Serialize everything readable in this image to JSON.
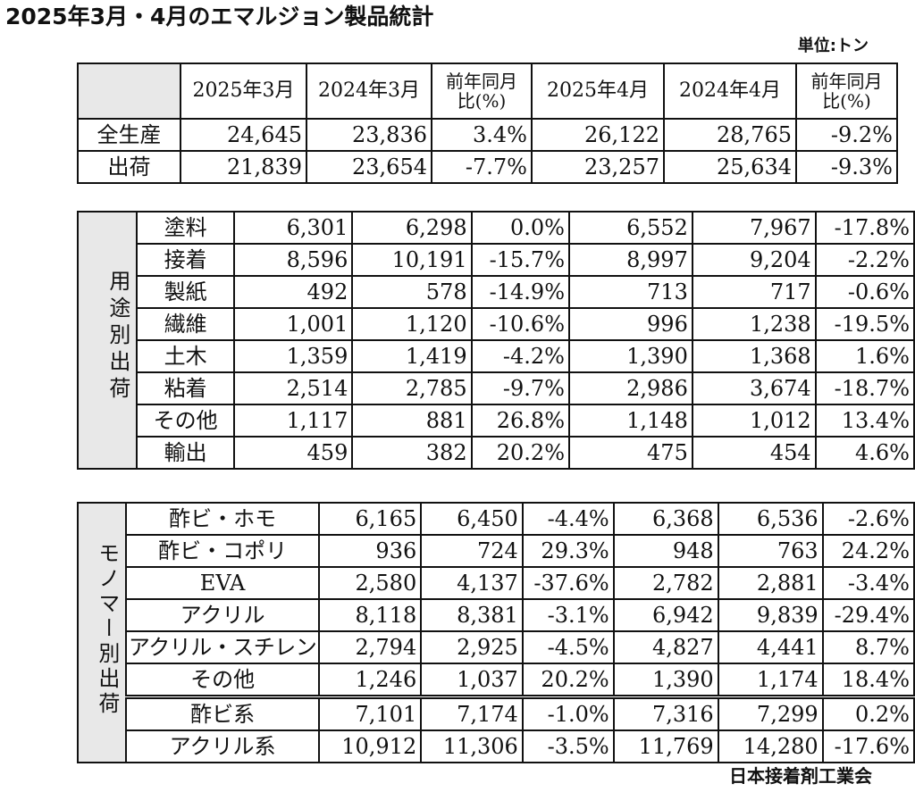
{
  "title": "2025年3月・4月のエマルジョン製品統計",
  "unit": "単位:トン",
  "footer": "日本接着剤工業会",
  "columns": [
    "2025年3月",
    "2024年3月",
    "前年同月比(%)",
    "2025年4月",
    "2024年4月",
    "前年同月比(%)"
  ],
  "col_labels": {
    "c1": "2025年3月",
    "c2": "2024年3月",
    "c3a": "前年同月",
    "c3b": "比(%)",
    "c4": "2025年4月",
    "c5": "2024年4月",
    "c6a": "前年同月",
    "c6b": "比(%)"
  },
  "summary": [
    {
      "label": "全生産",
      "values": [
        "24,645",
        "23,836",
        "3.4%",
        "26,122",
        "28,765",
        "-9.2%"
      ]
    },
    {
      "label": "出荷",
      "values": [
        "21,839",
        "23,654",
        "-7.7%",
        "23,257",
        "25,634",
        "-9.3%"
      ]
    }
  ],
  "by_use": {
    "group_label": "用途別出荷",
    "rows": [
      {
        "label": "塗料",
        "values": [
          "6,301",
          "6,298",
          "0.0%",
          "6,552",
          "7,967",
          "-17.8%"
        ]
      },
      {
        "label": "接着",
        "values": [
          "8,596",
          "10,191",
          "-15.7%",
          "8,997",
          "9,204",
          "-2.2%"
        ]
      },
      {
        "label": "製紙",
        "values": [
          "492",
          "578",
          "-14.9%",
          "713",
          "717",
          "-0.6%"
        ]
      },
      {
        "label": "繊維",
        "values": [
          "1,001",
          "1,120",
          "-10.6%",
          "996",
          "1,238",
          "-19.5%"
        ]
      },
      {
        "label": "土木",
        "values": [
          "1,359",
          "1,419",
          "-4.2%",
          "1,390",
          "1,368",
          "1.6%"
        ]
      },
      {
        "label": "粘着",
        "values": [
          "2,514",
          "2,785",
          "-9.7%",
          "2,986",
          "3,674",
          "-18.7%"
        ]
      },
      {
        "label": "その他",
        "values": [
          "1,117",
          "881",
          "26.8%",
          "1,148",
          "1,012",
          "13.4%"
        ]
      },
      {
        "label": "輸出",
        "values": [
          "459",
          "382",
          "20.2%",
          "475",
          "454",
          "4.6%"
        ]
      }
    ]
  },
  "by_monomer": {
    "group_label": "モノマー別出荷",
    "rows": [
      {
        "label": "酢ビ・ホモ",
        "values": [
          "6,165",
          "6,450",
          "-4.4%",
          "6,368",
          "6,536",
          "-2.6%"
        ]
      },
      {
        "label": "酢ビ・コポリ",
        "values": [
          "936",
          "724",
          "29.3%",
          "948",
          "763",
          "24.2%"
        ]
      },
      {
        "label": "EVA",
        "values": [
          "2,580",
          "4,137",
          "-37.6%",
          "2,782",
          "2,881",
          "-3.4%"
        ]
      },
      {
        "label": "アクリル",
        "values": [
          "8,118",
          "8,381",
          "-3.1%",
          "6,942",
          "9,839",
          "-29.4%"
        ]
      },
      {
        "label": "アクリル・スチレン",
        "values": [
          "2,794",
          "2,925",
          "-4.5%",
          "4,827",
          "4,441",
          "8.7%"
        ]
      },
      {
        "label": "その他",
        "values": [
          "1,246",
          "1,037",
          "20.2%",
          "1,390",
          "1,174",
          "18.4%"
        ]
      },
      {
        "label": "酢ビ系",
        "values": [
          "7,101",
          "7,174",
          "-1.0%",
          "7,316",
          "7,299",
          "0.2%"
        ]
      },
      {
        "label": "アクリル系",
        "values": [
          "10,912",
          "11,306",
          "-3.5%",
          "11,769",
          "14,280",
          "-17.6%"
        ]
      }
    ]
  }
}
